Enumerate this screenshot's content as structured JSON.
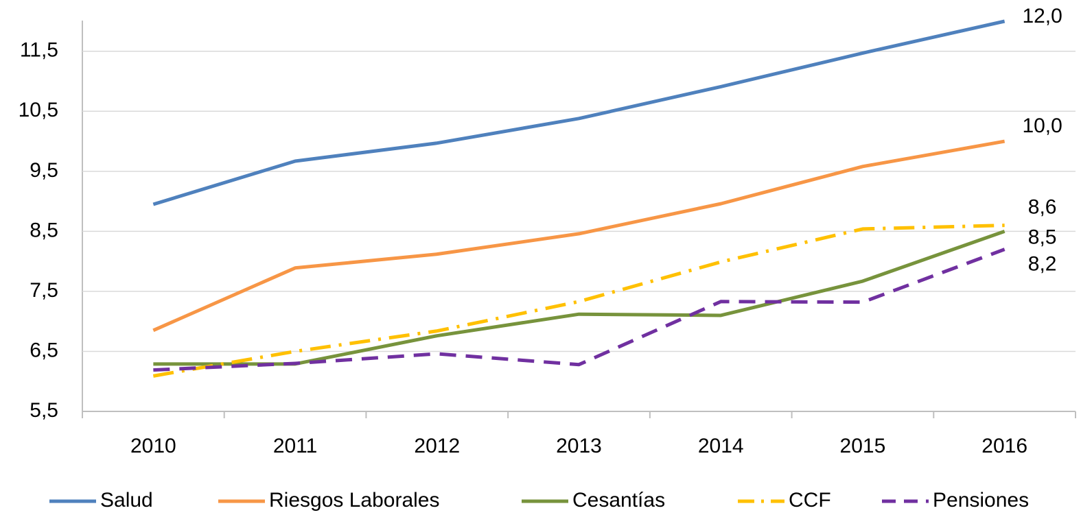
{
  "chart_data": {
    "type": "line",
    "categories": [
      "2010",
      "2011",
      "2012",
      "2013",
      "2014",
      "2015",
      "2016"
    ],
    "ylim": [
      5.5,
      12.0
    ],
    "yticks": [
      {
        "value": 5.5,
        "label": "5,5"
      },
      {
        "value": 6.5,
        "label": "6,5"
      },
      {
        "value": 7.5,
        "label": "7,5"
      },
      {
        "value": 8.5,
        "label": "8,5"
      },
      {
        "value": 9.5,
        "label": "9,5"
      },
      {
        "value": 10.5,
        "label": "10,5"
      },
      {
        "value": 11.5,
        "label": "11,5"
      }
    ],
    "grid": true,
    "legend": "bottom",
    "series": [
      {
        "name": "Salud",
        "color": "#4f81bd",
        "dash": "solid",
        "values": [
          8.95,
          9.67,
          9.97,
          10.38,
          10.91,
          11.47,
          12.0
        ],
        "value_labels": [
          null,
          null,
          null,
          null,
          null,
          null,
          "12,0"
        ]
      },
      {
        "name": "Riesgos Laborales",
        "color": "#f79646",
        "dash": "solid",
        "values": [
          6.85,
          7.89,
          8.12,
          8.46,
          8.96,
          9.58,
          10.0
        ],
        "value_labels": [
          null,
          null,
          null,
          null,
          null,
          null,
          "10,0"
        ]
      },
      {
        "name": "Cesantías",
        "color": "#77933c",
        "dash": "solid",
        "values": [
          6.29,
          6.29,
          6.76,
          7.12,
          7.1,
          7.67,
          8.5
        ],
        "value_labels": [
          null,
          null,
          null,
          null,
          null,
          null,
          "8,5"
        ]
      },
      {
        "name": "CCF",
        "color": "#ffc000",
        "dash": "dashdot",
        "values": [
          6.09,
          6.5,
          6.84,
          7.33,
          7.99,
          8.54,
          8.6
        ],
        "value_labels": [
          null,
          null,
          null,
          null,
          null,
          null,
          "8,6"
        ]
      },
      {
        "name": "Pensiones",
        "color": "#7030a0",
        "dash": "dash",
        "values": [
          6.19,
          6.3,
          6.46,
          6.28,
          7.33,
          7.32,
          8.2
        ],
        "value_labels": [
          null,
          null,
          null,
          null,
          null,
          null,
          "8,2"
        ]
      }
    ]
  }
}
